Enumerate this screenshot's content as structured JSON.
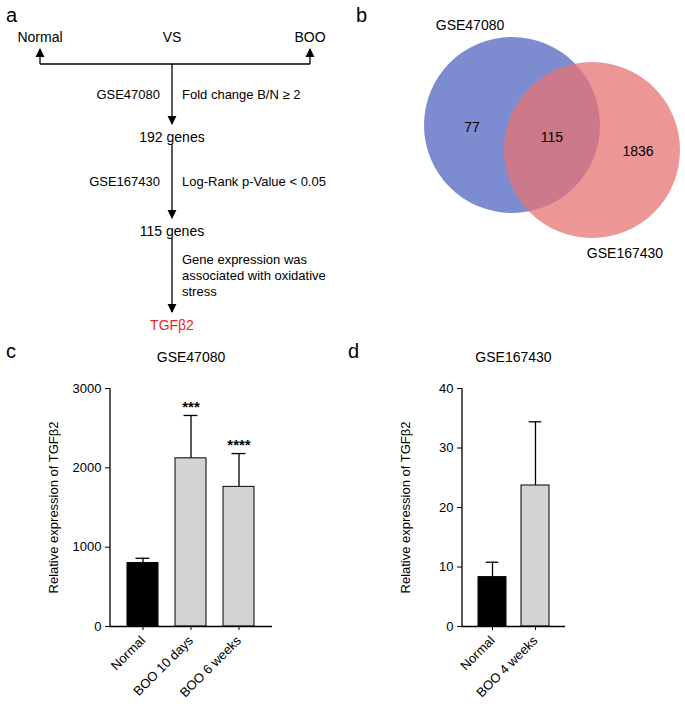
{
  "flowchart": {
    "panel": "a",
    "left": "Normal",
    "middle": "VS",
    "right": "BOO",
    "steps": [
      {
        "dataset": "GSE47080",
        "criterion": [
          "Fold change B/N ≥ 2"
        ],
        "result": "192 genes"
      },
      {
        "dataset": "GSE167430",
        "criterion": [
          "Log-Rank p-Value < 0.05"
        ],
        "result": "115 genes"
      },
      {
        "dataset": null,
        "criterion": [
          "Gene expression was",
          "associated with oxidative",
          "stress"
        ],
        "result": "TGFβ2",
        "color": "#e8261f"
      }
    ]
  },
  "venn": {
    "panel": "b",
    "sets": [
      {
        "name": "GSE47080",
        "color": "#6f80cc",
        "only": 77
      },
      {
        "name": "GSE167430",
        "color": "#e57373",
        "only": 1836
      }
    ],
    "both": 115
  },
  "chart_data": [
    {
      "panel": "c",
      "type": "bar",
      "title": "GSE47080",
      "y_label": "Relative expression of TGFβ2",
      "categories": [
        "Normal",
        "BOO 10 days",
        "BOO 6 weeks"
      ],
      "values": [
        800,
        2120,
        1760
      ],
      "errors": [
        60,
        540,
        420
      ],
      "significance": [
        null,
        "***",
        "****"
      ],
      "colors": [
        "#000000",
        "#d3d3d3",
        "#d3d3d3"
      ],
      "ylim": [
        0,
        3000
      ],
      "yticks": [
        0,
        1000,
        2000,
        3000
      ],
      "grid": false
    },
    {
      "panel": "d",
      "type": "bar",
      "title": "GSE167430",
      "y_label": "Relative expression of TGFβ2",
      "categories": [
        "Normal",
        "BOO 4 weeks"
      ],
      "values": [
        8.3,
        23.7
      ],
      "errors": [
        2.5,
        10.7
      ],
      "significance": [
        null,
        null
      ],
      "colors": [
        "#000000",
        "#d3d3d3"
      ],
      "ylim": [
        0,
        40
      ],
      "yticks": [
        0,
        10,
        20,
        30,
        40
      ],
      "grid": false
    }
  ]
}
